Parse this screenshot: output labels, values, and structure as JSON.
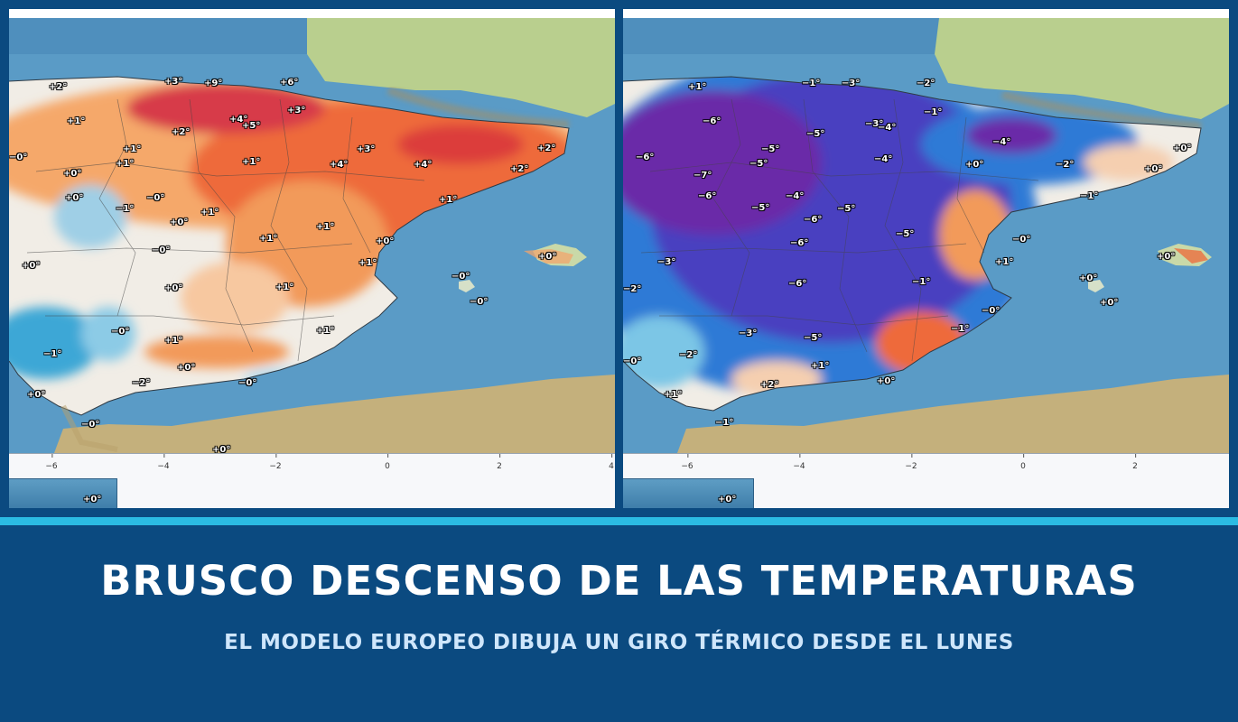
{
  "headline": "BRUSCO DESCENSO DE LAS TEMPERATURAS",
  "subheadline": "EL MODELO EUROPEO DIBUJA UN GIRO TÉRMICO DESDE EL LUNES",
  "colors": {
    "background": "#0b4a80",
    "divider": "#2bbbe3",
    "headline_text": "#ffffff",
    "subheadline_text": "#cfe6fb",
    "sea": "#5a9bc6",
    "land_north": "#b9cf8e",
    "warm_strong": "#e8542d",
    "warm_light": "#f5b27a",
    "cold": "#2f6fd0",
    "very_cold": "#4a2fb0"
  },
  "maps": {
    "left": {
      "ticks": [
        "−6",
        "−4",
        "−2",
        "0",
        "2",
        "4"
      ],
      "inset_label": "+0°",
      "labels": [
        "+2°",
        "+3°",
        "+9°",
        "+6°",
        "+1°",
        "+2°",
        "+4°",
        "+5°",
        "+3°",
        "+1°",
        "+1°",
        "+1°",
        "+3°",
        "+0°",
        "+4°",
        "+4°",
        "+2°",
        "+2°",
        "+0°",
        "−0°",
        "+1°",
        "−1°",
        "+1°",
        "+0°",
        "+1°",
        "+1°",
        "+0°",
        "−0°",
        "+1°",
        "+0°",
        "−0°",
        "+0°",
        "+1°",
        "−0°",
        "+0°",
        "−0°",
        "+1°",
        "−0°",
        "−1°",
        "+1°",
        "+0°",
        "−2°",
        "−0°",
        "+0°",
        "−0°",
        "+0°"
      ]
    },
    "right": {
      "ticks": [
        "−6",
        "−4",
        "−2",
        "0",
        "2"
      ],
      "inset_label": "+0°",
      "labels": [
        "+1°",
        "−1°",
        "−3°",
        "−2°",
        "−6°",
        "−3°",
        "−4°",
        "−1°",
        "−5°",
        "−5°",
        "−4°",
        "−6°",
        "−5°",
        "−4°",
        "−7°",
        "+0°",
        "−2°",
        "+0°",
        "+0°",
        "−6°",
        "−5°",
        "−4°",
        "−5°",
        "−1°",
        "−6°",
        "−6°",
        "−5°",
        "−0°",
        "−3°",
        "+1°",
        "+0°",
        "−2°",
        "−6°",
        "−1°",
        "+0°",
        "+0°",
        "−5°",
        "−0°",
        "−3°",
        "−1°",
        "−0°",
        "−2°",
        "+2°",
        "+1°",
        "+0°",
        "+1°",
        "−1°"
      ]
    }
  }
}
